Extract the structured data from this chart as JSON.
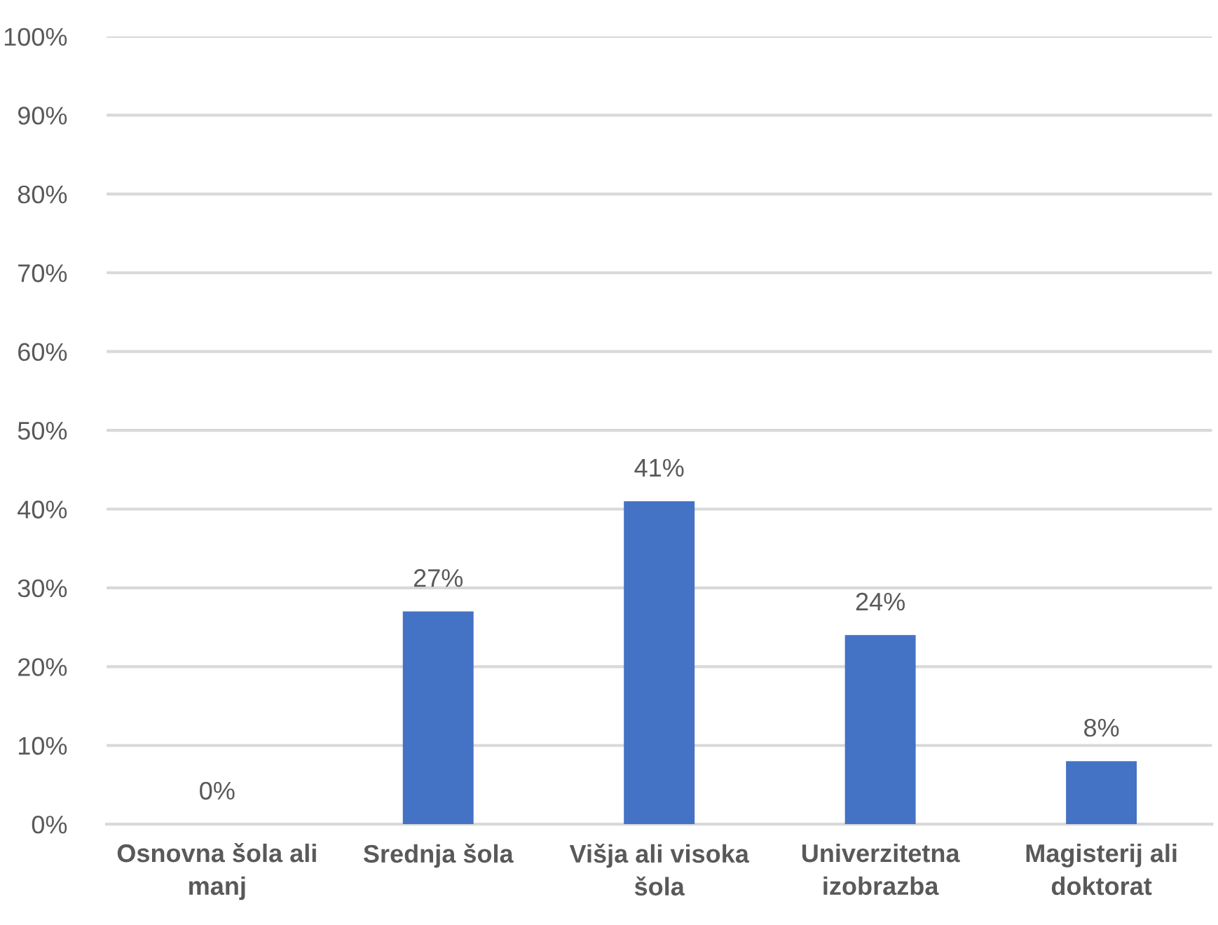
{
  "chart_data": {
    "type": "bar",
    "categories": [
      "Osnovna šola ali\nmanj",
      "Srednja šola",
      "Višja ali visoka\nšola",
      "Univerzitetna\nizobrazba",
      "Magisterij ali\ndoktorat"
    ],
    "values": [
      0,
      27,
      41,
      24,
      8
    ],
    "color": "#4472c4",
    "value_labels": [
      "0%",
      "27%",
      "41%",
      "24%",
      "8%"
    ],
    "ylim": [
      0,
      100
    ],
    "yticks": [
      {
        "value": 0,
        "label": "0%"
      },
      {
        "value": 10,
        "label": "10%"
      },
      {
        "value": 20,
        "label": "20%"
      },
      {
        "value": 30,
        "label": "30%"
      },
      {
        "value": 40,
        "label": "40%"
      },
      {
        "value": 50,
        "label": "50%"
      },
      {
        "value": 60,
        "label": "60%"
      },
      {
        "value": 70,
        "label": "70%"
      },
      {
        "value": 80,
        "label": "80%"
      },
      {
        "value": 90,
        "label": "90%"
      },
      {
        "value": 100,
        "label": "100%"
      }
    ],
    "grid": "y",
    "legend": false
  }
}
